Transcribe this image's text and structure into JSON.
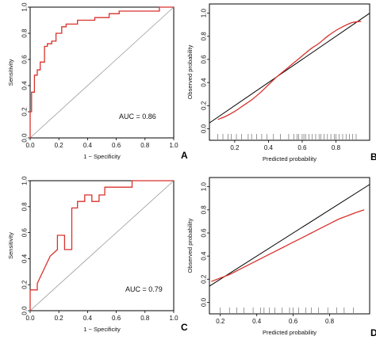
{
  "figure": {
    "panels": [
      "A",
      "B",
      "C",
      "D"
    ]
  },
  "colors": {
    "curve": "#d8322c",
    "axis": "#000000",
    "reference": "#999999",
    "rug": "#555555"
  },
  "chart_data": [
    {
      "id": "A",
      "type": "line",
      "panel_label": "A",
      "xlabel": "1 − Specificity",
      "ylabel": "Sensitivity",
      "xlim": [
        0,
        1
      ],
      "ylim": [
        0,
        1
      ],
      "xticks": [
        "0.0",
        "0.2",
        "0.4",
        "0.6",
        "0.8",
        "1.0"
      ],
      "yticks": [
        "0.0",
        "0.2",
        "0.4",
        "0.6",
        "0.8",
        "1.0"
      ],
      "annotation": "AUC = 0.86",
      "reference_line": "diagonal",
      "grid": false,
      "series": [
        {
          "x": [
            0.0,
            0.0,
            0.01,
            0.01,
            0.03,
            0.03,
            0.05,
            0.05,
            0.07,
            0.07,
            0.1,
            0.1,
            0.12,
            0.12,
            0.15,
            0.15,
            0.18,
            0.18,
            0.22,
            0.22,
            0.25,
            0.25,
            0.33,
            0.33,
            0.45,
            0.45,
            0.55,
            0.55,
            0.62,
            0.62,
            0.9,
            0.9,
            1.0
          ],
          "y": [
            0.0,
            0.2,
            0.2,
            0.35,
            0.35,
            0.48,
            0.48,
            0.52,
            0.52,
            0.58,
            0.58,
            0.7,
            0.7,
            0.72,
            0.72,
            0.74,
            0.74,
            0.8,
            0.8,
            0.85,
            0.85,
            0.87,
            0.87,
            0.9,
            0.9,
            0.92,
            0.92,
            0.95,
            0.95,
            0.97,
            0.97,
            1.0,
            1.0
          ]
        }
      ]
    },
    {
      "id": "B",
      "type": "line",
      "panel_label": "B",
      "xlabel": "Predicted probability",
      "ylabel": "Observed probability",
      "xlim": [
        0.05,
        1.0
      ],
      "ylim": [
        -0.1,
        1.08
      ],
      "xticks": [
        "0.2",
        "0.4",
        "0.6",
        "0.8"
      ],
      "yticks": [
        "0.0",
        "0.2",
        "0.4",
        "0.6",
        "0.8",
        "1.0"
      ],
      "reference_line": "diagonal",
      "grid": false,
      "series": [
        {
          "x": [
            0.1,
            0.15,
            0.2,
            0.25,
            0.3,
            0.35,
            0.4,
            0.45,
            0.5,
            0.55,
            0.6,
            0.65,
            0.7,
            0.75,
            0.8,
            0.85,
            0.9,
            0.95
          ],
          "y": [
            0.08,
            0.11,
            0.15,
            0.2,
            0.25,
            0.31,
            0.38,
            0.45,
            0.51,
            0.57,
            0.63,
            0.69,
            0.74,
            0.8,
            0.85,
            0.89,
            0.92,
            0.93
          ]
        }
      ],
      "rug": [
        0.1,
        0.13,
        0.16,
        0.18,
        0.21,
        0.24,
        0.28,
        0.3,
        0.33,
        0.36,
        0.39,
        0.43,
        0.47,
        0.52,
        0.55,
        0.57,
        0.58,
        0.6,
        0.61,
        0.62,
        0.64,
        0.66,
        0.68,
        0.7,
        0.71,
        0.73,
        0.75,
        0.77,
        0.79,
        0.8,
        0.82,
        0.84,
        0.86,
        0.88,
        0.9,
        0.92
      ]
    },
    {
      "id": "C",
      "type": "line",
      "panel_label": "C",
      "xlabel": "1 − Specificity",
      "ylabel": "Sensitivity",
      "xlim": [
        0,
        1
      ],
      "ylim": [
        0,
        1
      ],
      "xticks": [
        "0.0",
        "0.2",
        "0.4",
        "0.6",
        "0.8",
        "1.0"
      ],
      "yticks": [
        "0.0",
        "0.2",
        "0.4",
        "0.6",
        "0.8",
        "1.0"
      ],
      "annotation": "AUC = 0.79",
      "reference_line": "diagonal",
      "grid": false,
      "series": [
        {
          "x": [
            0.0,
            0.0,
            0.05,
            0.05,
            0.14,
            0.19,
            0.19,
            0.24,
            0.24,
            0.29,
            0.29,
            0.33,
            0.33,
            0.38,
            0.38,
            0.43,
            0.43,
            0.48,
            0.48,
            0.52,
            0.52,
            0.71,
            0.71,
            1.0
          ],
          "y": [
            0.0,
            0.16,
            0.16,
            0.21,
            0.42,
            0.47,
            0.58,
            0.58,
            0.47,
            0.47,
            0.79,
            0.79,
            0.84,
            0.84,
            0.89,
            0.89,
            0.84,
            0.84,
            0.89,
            0.89,
            0.95,
            0.95,
            1.0,
            1.0
          ]
        }
      ]
    },
    {
      "id": "D",
      "type": "line",
      "panel_label": "D",
      "xlabel": "Predicted probability",
      "ylabel": "Observed probability",
      "xlim": [
        0.14,
        1.02
      ],
      "ylim": [
        -0.1,
        1.08
      ],
      "xticks": [
        "0.2",
        "0.4",
        "0.6",
        "0.8"
      ],
      "yticks": [
        "0.0",
        "0.2",
        "0.4",
        "0.6",
        "0.8",
        "1.0"
      ],
      "reference_line": "diagonal",
      "grid": false,
      "series": [
        {
          "x": [
            0.15,
            0.2,
            0.25,
            0.3,
            0.35,
            0.4,
            0.45,
            0.5,
            0.55,
            0.6,
            0.65,
            0.7,
            0.75,
            0.8,
            0.85,
            0.9,
            0.95,
            0.99
          ],
          "y": [
            0.18,
            0.21,
            0.24,
            0.28,
            0.32,
            0.36,
            0.4,
            0.44,
            0.48,
            0.52,
            0.56,
            0.6,
            0.64,
            0.68,
            0.72,
            0.75,
            0.78,
            0.8
          ]
        }
      ],
      "rug": [
        0.2,
        0.25,
        0.29,
        0.33,
        0.38,
        0.42,
        0.44,
        0.47,
        0.5,
        0.54,
        0.58,
        0.6,
        0.63,
        0.67,
        0.7,
        0.74,
        0.79,
        0.84,
        0.88,
        0.93
      ]
    }
  ]
}
